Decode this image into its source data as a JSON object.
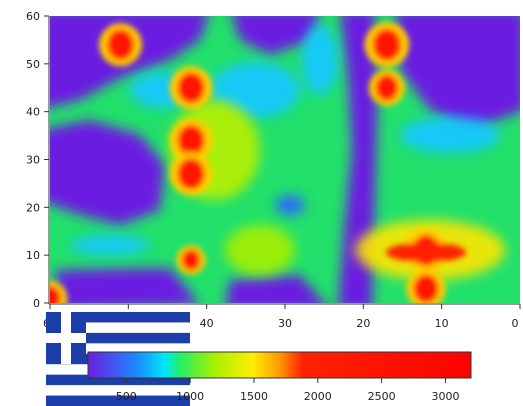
{
  "chart_data": {
    "type": "heatmap",
    "title": "",
    "xlabel": "",
    "ylabel": "",
    "xlim": [
      60,
      0
    ],
    "ylim": [
      0,
      60
    ],
    "x_ticks": [
      "60",
      "50",
      "40",
      "30",
      "20",
      "10",
      "0"
    ],
    "y_ticks": [
      "0",
      "10",
      "20",
      "30",
      "40",
      "50",
      "60"
    ],
    "value_range": [
      200,
      3200
    ],
    "hotspots": [
      {
        "x": 51,
        "y": 54,
        "value": 3000
      },
      {
        "x": 42,
        "y": 45,
        "value": 3000
      },
      {
        "x": 42,
        "y": 34,
        "value": 3000
      },
      {
        "x": 42,
        "y": 27,
        "value": 3000
      },
      {
        "x": 42,
        "y": 9,
        "value": 2200
      },
      {
        "x": 17,
        "y": 54,
        "value": 3100
      },
      {
        "x": 17,
        "y": 45,
        "value": 2600
      },
      {
        "x": 12,
        "y": 11,
        "value": 3000
      },
      {
        "x": 12,
        "y": 3,
        "value": 2800
      },
      {
        "x": 60,
        "y": 1,
        "value": 2500
      }
    ],
    "colorbar": {
      "ticks": [
        "500",
        "1000",
        "1500",
        "2000",
        "2500",
        "3000"
      ],
      "colors": [
        "#6a1ee0",
        "#1a8cff",
        "#00e6ff",
        "#22ee66",
        "#a8f000",
        "#ffee00",
        "#ff9900",
        "#ff2200",
        "#ff0000"
      ]
    },
    "grid": false,
    "legend_position": "bottom",
    "flag_colors": {
      "blue": "#1b3ea8",
      "white": "#ffffff"
    }
  }
}
